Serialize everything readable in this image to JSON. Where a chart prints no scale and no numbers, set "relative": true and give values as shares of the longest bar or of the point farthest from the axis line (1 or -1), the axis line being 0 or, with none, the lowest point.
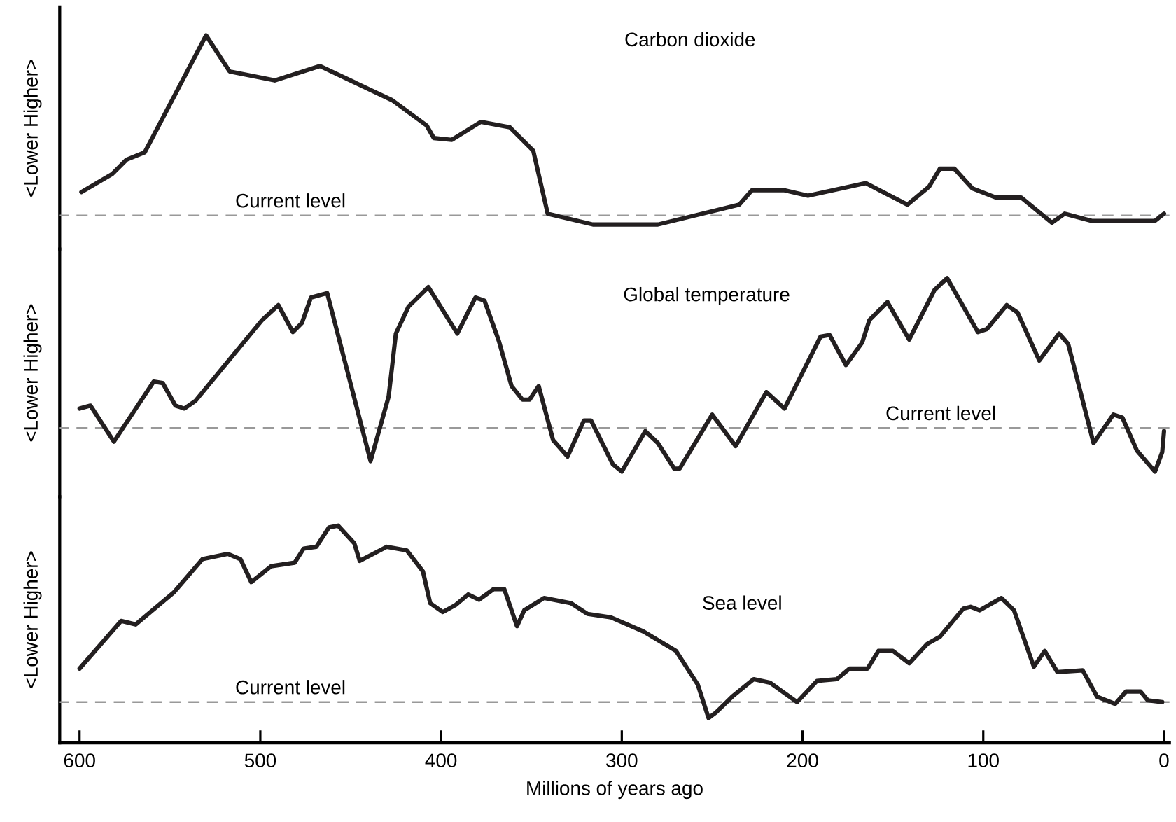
{
  "chart_data": [
    {
      "type": "line",
      "title": "Carbon dioxide",
      "ylabel": "<Lower Higher>",
      "relative": true,
      "color": "#231f20",
      "xlim": [
        611,
        -3
      ],
      "tick_labels": false,
      "x": [
        599,
        582,
        574,
        564,
        530,
        517,
        492,
        467,
        427,
        408,
        404,
        394,
        378,
        362,
        349,
        341,
        316,
        280,
        235,
        228,
        210,
        197,
        165,
        142,
        130,
        124,
        116,
        106,
        93,
        79,
        62,
        55,
        40,
        5,
        0
      ],
      "values": [
        0.13,
        0.23,
        0.31,
        0.35,
        1.0,
        0.8,
        0.75,
        0.83,
        0.64,
        0.5,
        0.43,
        0.42,
        0.52,
        0.49,
        0.36,
        0.01,
        -0.05,
        -0.05,
        0.06,
        0.14,
        0.14,
        0.11,
        0.18,
        0.06,
        0.16,
        0.26,
        0.26,
        0.15,
        0.1,
        0.1,
        -0.04,
        0.01,
        -0.03,
        -0.03,
        0.01
      ],
      "ref_lines": [
        {
          "axis": "y",
          "value": 0,
          "label": "Current level",
          "color": "#999999",
          "line_style": "dashed"
        }
      ]
    },
    {
      "type": "line",
      "title": "Global temperature",
      "ylabel": "<Lower Higher>",
      "relative": true,
      "color": "#231f20",
      "xlim": [
        611,
        -3
      ],
      "tick_labels": false,
      "x": [
        600,
        594,
        581,
        559,
        554,
        547,
        542,
        536,
        499,
        490,
        482,
        477,
        472,
        463,
        439,
        429,
        425,
        418,
        407,
        391,
        381,
        376,
        368,
        361,
        355,
        351,
        346,
        338,
        330,
        321,
        317,
        305,
        300,
        287,
        280,
        271,
        268,
        250,
        237,
        220,
        210,
        190,
        185,
        176,
        167,
        163,
        153,
        141,
        127,
        120,
        103,
        98,
        87,
        81,
        69,
        58,
        53,
        39,
        28,
        23,
        15,
        5,
        1,
        0
      ],
      "values": [
        0.13,
        0.15,
        -0.09,
        0.31,
        0.3,
        0.15,
        0.13,
        0.18,
        0.72,
        0.82,
        0.64,
        0.7,
        0.87,
        0.9,
        -0.22,
        0.21,
        0.63,
        0.81,
        0.94,
        0.63,
        0.87,
        0.85,
        0.58,
        0.28,
        0.19,
        0.19,
        0.28,
        -0.08,
        -0.19,
        0.05,
        0.05,
        -0.24,
        -0.29,
        -0.02,
        -0.1,
        -0.27,
        -0.27,
        0.09,
        -0.12,
        0.24,
        0.13,
        0.61,
        0.62,
        0.42,
        0.57,
        0.72,
        0.84,
        0.59,
        0.92,
        1.0,
        0.64,
        0.66,
        0.82,
        0.77,
        0.45,
        0.63,
        0.56,
        -0.1,
        0.09,
        0.07,
        -0.15,
        -0.29,
        -0.16,
        -0.02
      ],
      "ref_lines": [
        {
          "axis": "y",
          "value": 0,
          "label": "Current level",
          "color": "#999999",
          "line_style": "dashed"
        }
      ]
    },
    {
      "type": "line",
      "title": "Sea level",
      "ylabel": "<Lower Higher>",
      "xlabel": "Millions of years ago",
      "relative": true,
      "color": "#231f20",
      "xlim": [
        611,
        -3
      ],
      "xticks": [
        600,
        500,
        400,
        300,
        200,
        100,
        0
      ],
      "tick_labels": "x",
      "x": [
        600,
        577,
        569,
        548,
        532,
        518,
        511,
        505,
        494,
        481,
        476,
        469,
        462,
        457,
        448,
        445,
        430,
        419,
        410,
        406,
        399,
        392,
        385,
        379,
        371,
        365,
        358,
        354,
        343,
        328,
        319,
        306,
        288,
        270,
        258,
        252,
        248,
        239,
        227,
        218,
        203,
        192,
        181,
        174,
        164,
        158,
        150,
        141,
        131,
        124,
        111,
        107,
        102,
        90,
        83,
        72,
        66,
        59,
        45,
        37,
        27,
        21,
        13,
        9,
        1
      ],
      "values": [
        0.19,
        0.46,
        0.44,
        0.62,
        0.81,
        0.84,
        0.81,
        0.68,
        0.77,
        0.79,
        0.87,
        0.88,
        0.99,
        1.0,
        0.9,
        0.8,
        0.88,
        0.86,
        0.74,
        0.56,
        0.51,
        0.55,
        0.61,
        0.58,
        0.64,
        0.64,
        0.43,
        0.52,
        0.59,
        0.56,
        0.5,
        0.48,
        0.4,
        0.29,
        0.1,
        -0.09,
        -0.06,
        0.03,
        0.13,
        0.11,
        0,
        0.12,
        0.13,
        0.19,
        0.19,
        0.29,
        0.29,
        0.22,
        0.33,
        0.37,
        0.53,
        0.54,
        0.52,
        0.59,
        0.52,
        0.2,
        0.29,
        0.17,
        0.18,
        0.03,
        -0.01,
        0.06,
        0.06,
        0.01,
        0
      ],
      "ref_lines": [
        {
          "axis": "y",
          "value": 0,
          "label": "Current level",
          "color": "#999999",
          "line_style": "dashed"
        }
      ]
    }
  ]
}
